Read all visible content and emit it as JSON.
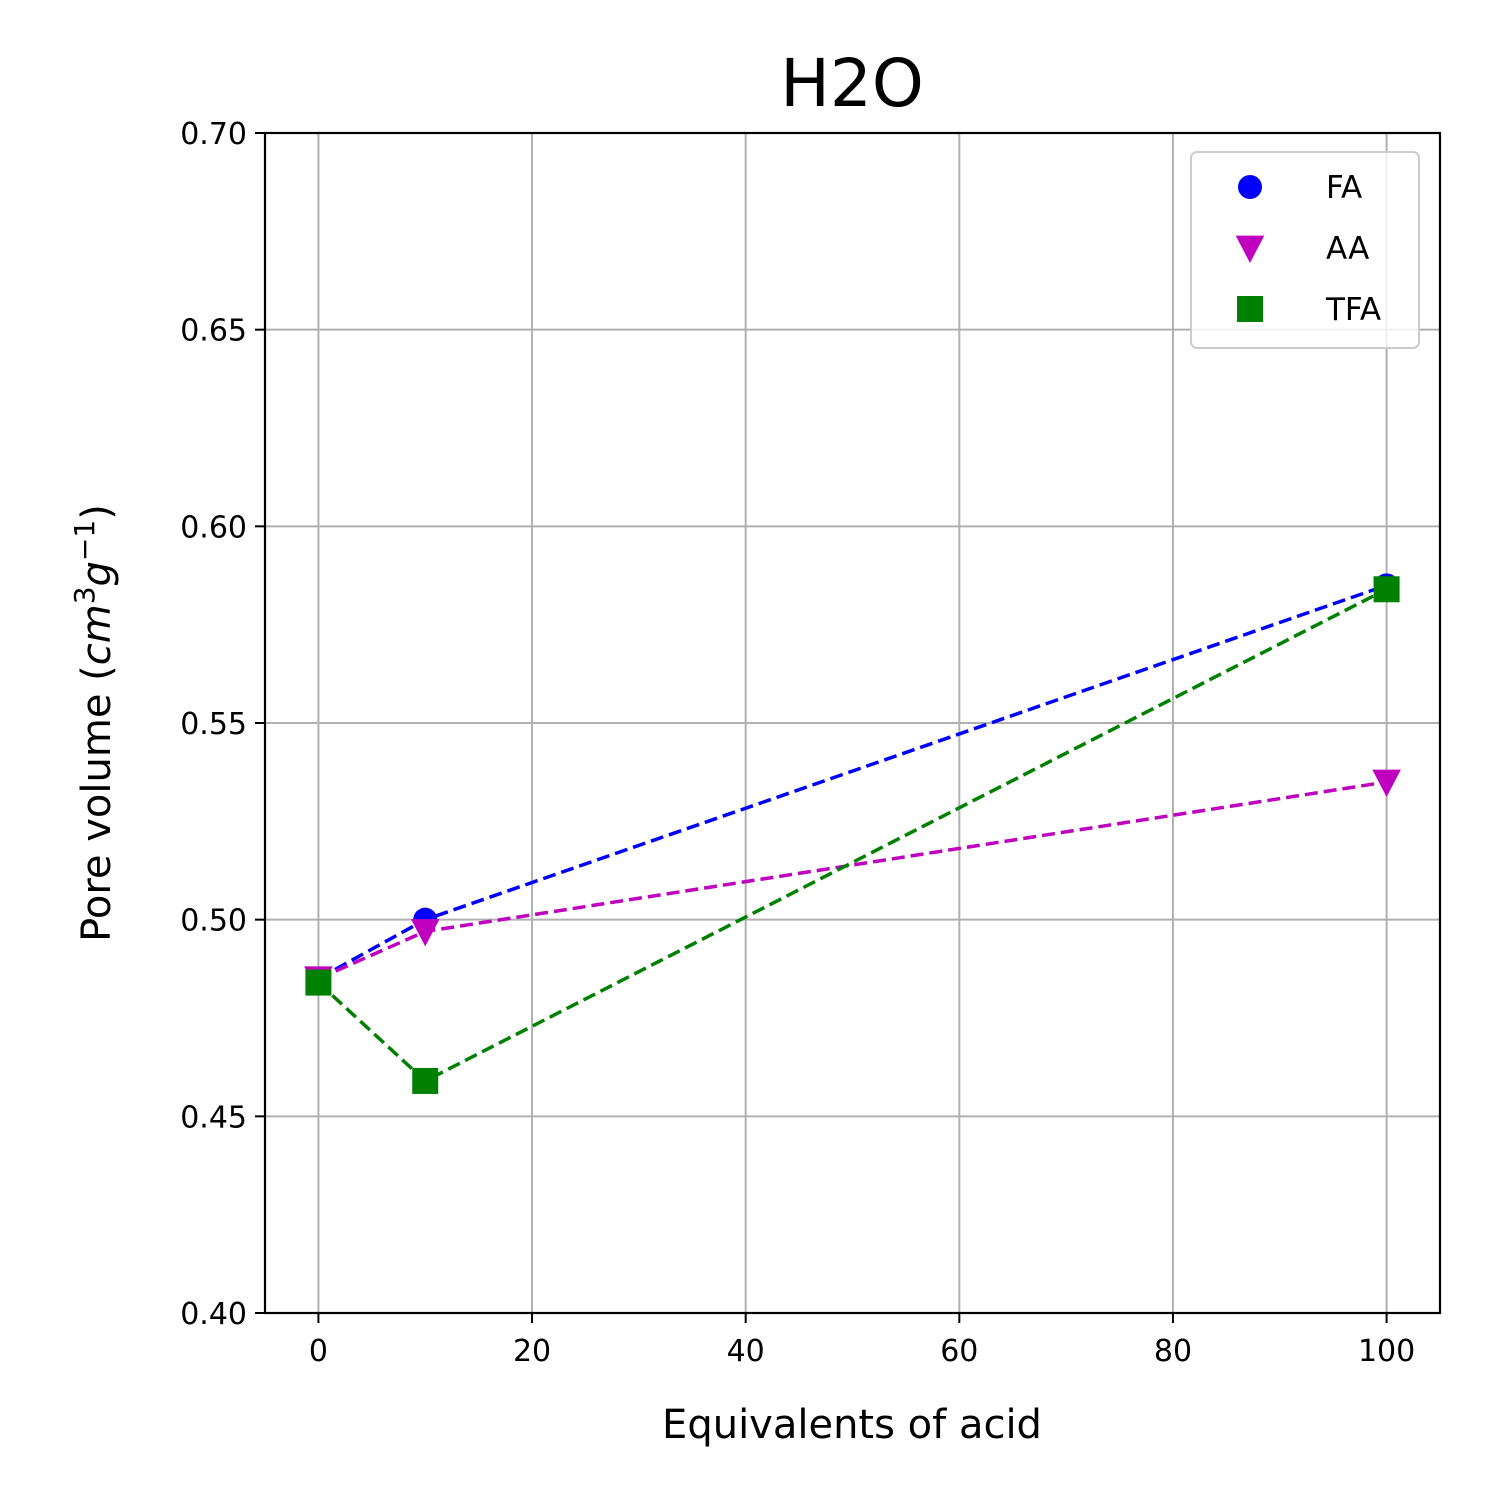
{
  "chart_data": {
    "type": "line",
    "title": "H2O",
    "xlabel": "Equivalents of acid",
    "ylabel": "Pore volume (cm³g⁻¹)",
    "ylabel_parts": {
      "prefix": "Pore volume (",
      "base1": "cm",
      "sup1": "3",
      "base2": "g",
      "sup2": "−1",
      "suffix": ")"
    },
    "xlim": [
      -5,
      105
    ],
    "ylim": [
      0.4,
      0.7
    ],
    "xticks": [
      0,
      20,
      40,
      60,
      80,
      100
    ],
    "xtick_labels": [
      "0",
      "20",
      "40",
      "60",
      "80",
      "100"
    ],
    "yticks": [
      0.4,
      0.45,
      0.5,
      0.55,
      0.6,
      0.65,
      0.7
    ],
    "ytick_labels": [
      "0.40",
      "0.45",
      "0.50",
      "0.55",
      "0.60",
      "0.65",
      "0.70"
    ],
    "grid": true,
    "legend_position": "top-right",
    "series": [
      {
        "name": "FA",
        "color": "#0000ff",
        "marker": "circle",
        "linestyle": "dashed",
        "x": [
          0,
          10,
          100
        ],
        "y": [
          0.485,
          0.5,
          0.585
        ]
      },
      {
        "name": "AA",
        "color": "#bf00bf",
        "marker": "triangle-down",
        "linestyle": "dashed",
        "x": [
          0,
          10,
          100
        ],
        "y": [
          0.485,
          0.497,
          0.535
        ]
      },
      {
        "name": "TFA",
        "color": "#008000",
        "marker": "square",
        "linestyle": "dashed",
        "x": [
          0,
          10,
          100
        ],
        "y": [
          0.484,
          0.459,
          0.584
        ]
      }
    ]
  }
}
